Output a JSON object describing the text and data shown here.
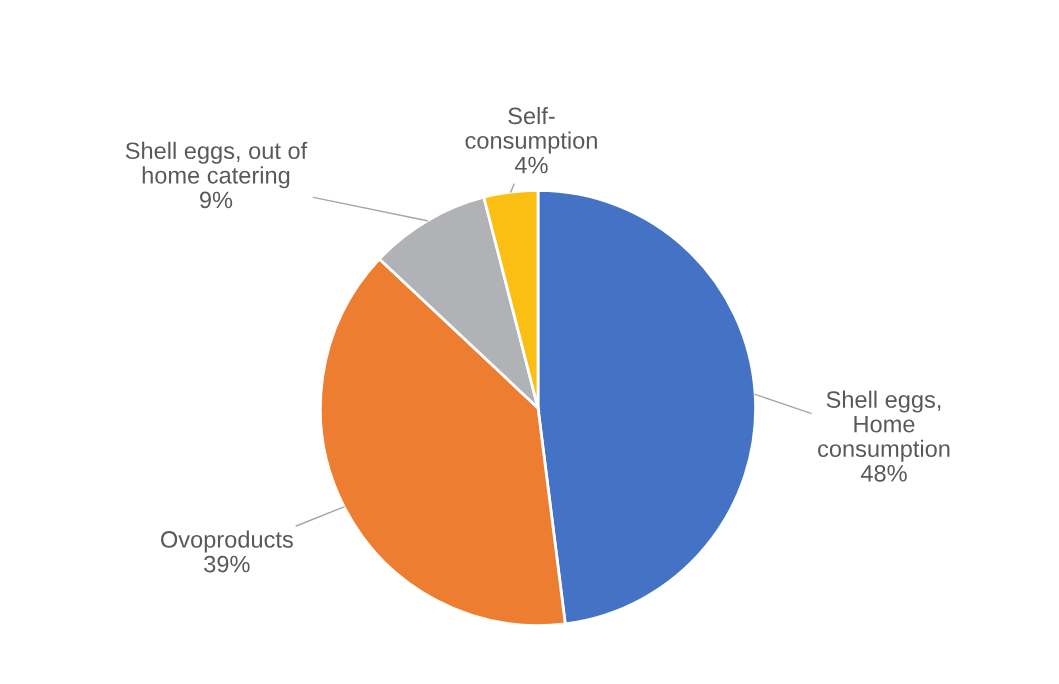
{
  "chart_data": {
    "type": "pie",
    "categories": [
      "Shell eggs,\nHome\nconsumption",
      "Ovoproducts",
      "Shell eggs, out of\nhome catering",
      "Self-\nconsumption"
    ],
    "values": [
      48,
      39,
      9,
      4
    ],
    "value_labels": [
      "48%",
      "39%",
      "9%",
      "4%"
    ],
    "colors": [
      "#4472c4",
      "#ed7d31",
      "#b1b2b5",
      "#fbbf14"
    ],
    "legend": false
  }
}
